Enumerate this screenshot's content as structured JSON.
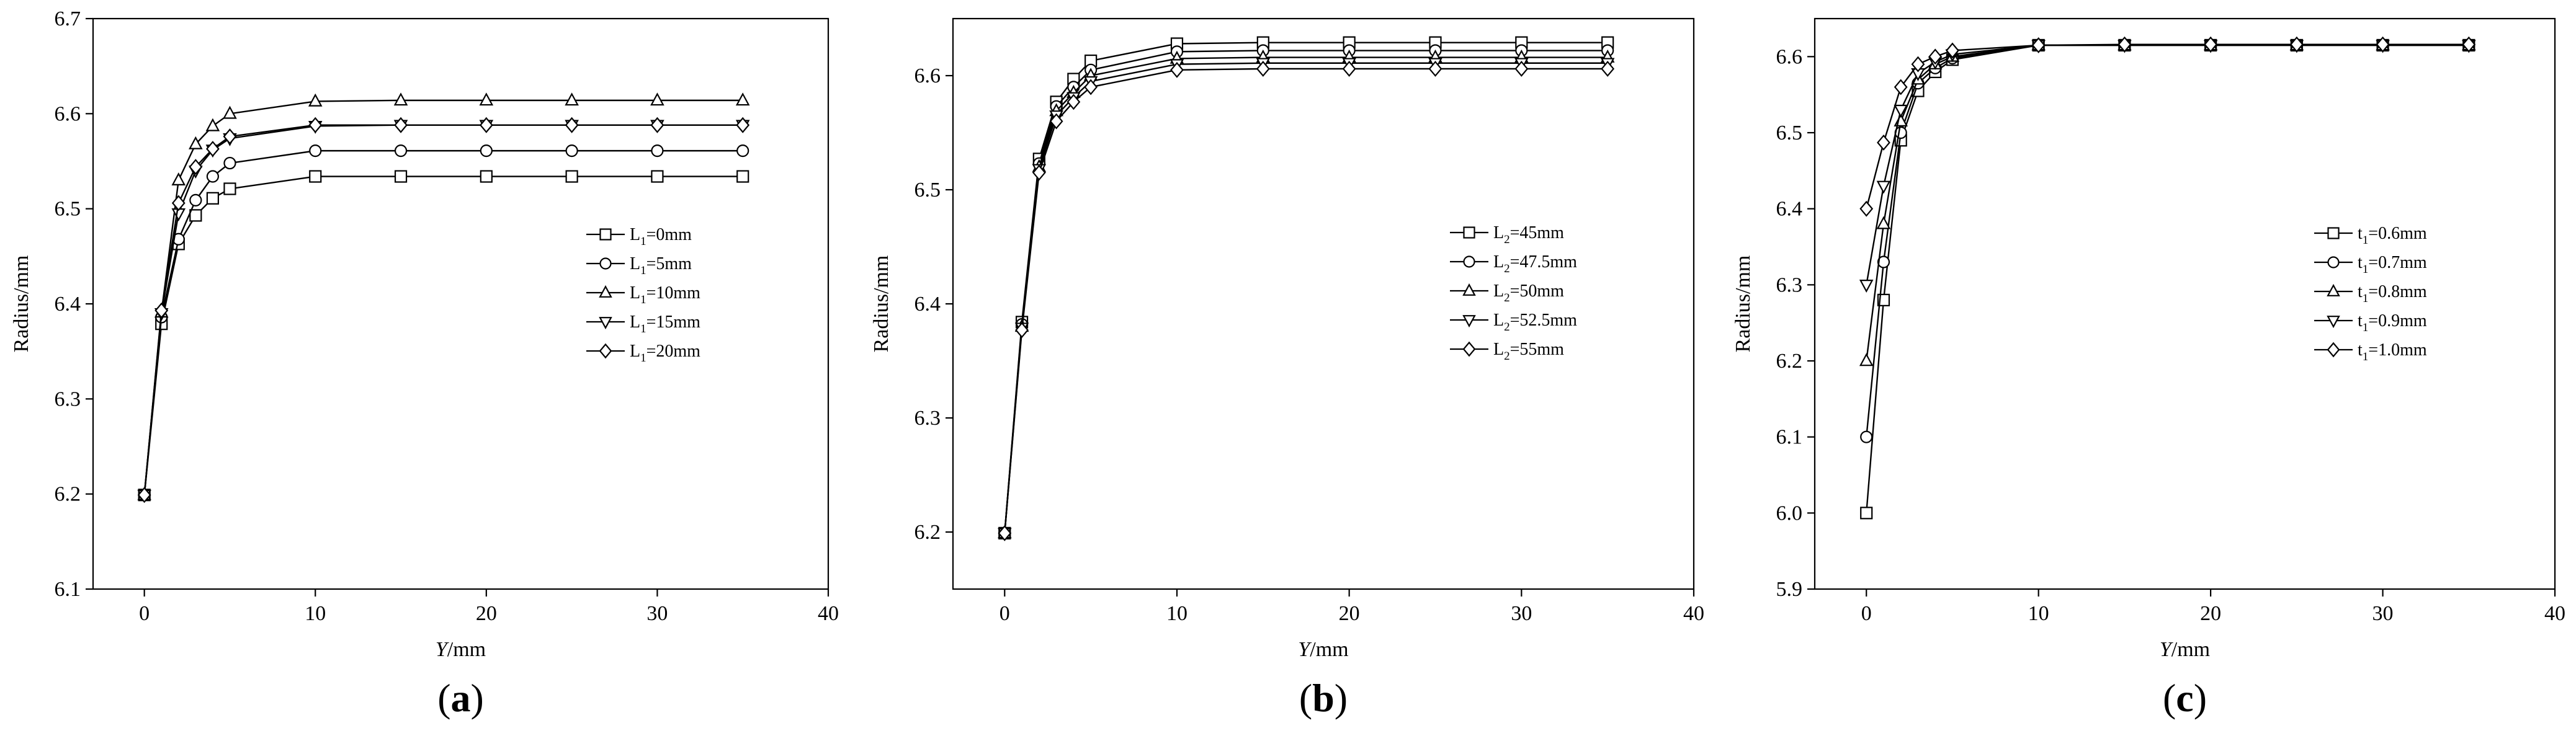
{
  "figure": {
    "panels": [
      {
        "label_open": "(",
        "label_letter": "a",
        "label_close": ")"
      },
      {
        "label_open": "(",
        "label_letter": "b",
        "label_close": ")"
      },
      {
        "label_open": "(",
        "label_letter": "c",
        "label_close": ")"
      }
    ]
  },
  "chart_data": [
    {
      "type": "line",
      "title": "",
      "xlabel_italic": "Y",
      "xlabel_rest": "/mm",
      "ylabel": "Radius/mm",
      "xlim": [
        -3,
        40
      ],
      "ylim": [
        6.1,
        6.7
      ],
      "xticks": [
        0,
        10,
        20,
        30,
        40
      ],
      "yticks": [
        6.1,
        6.2,
        6.3,
        6.4,
        6.5,
        6.6,
        6.7
      ],
      "tick_decimals": 1,
      "grid": false,
      "legend_position": "right-middle",
      "x": [
        0,
        1,
        2,
        3,
        4,
        5,
        10,
        15,
        20,
        25,
        30,
        35
      ],
      "series": [
        {
          "name_pre": "L",
          "name_sub": "1",
          "name_post": "=0mm",
          "marker": "square",
          "values": [
            6.199,
            6.379,
            6.463,
            6.493,
            6.511,
            6.521,
            6.534,
            6.534,
            6.534,
            6.534,
            6.534,
            6.534
          ]
        },
        {
          "name_pre": "L",
          "name_sub": "1",
          "name_post": "=5mm",
          "marker": "circle",
          "values": [
            6.199,
            6.386,
            6.468,
            6.509,
            6.534,
            6.548,
            6.561,
            6.561,
            6.561,
            6.561,
            6.561,
            6.561
          ]
        },
        {
          "name_pre": "L",
          "name_sub": "1",
          "name_post": "=10mm",
          "marker": "triangle-up",
          "values": [
            6.199,
            6.391,
            6.53,
            6.568,
            6.587,
            6.6,
            6.613,
            6.614,
            6.614,
            6.614,
            6.614,
            6.614
          ]
        },
        {
          "name_pre": "L",
          "name_sub": "1",
          "name_post": "=15mm",
          "marker": "triangle-down",
          "values": [
            6.199,
            6.39,
            6.495,
            6.54,
            6.562,
            6.574,
            6.587,
            6.588,
            6.588,
            6.588,
            6.588,
            6.588
          ]
        },
        {
          "name_pre": "L",
          "name_sub": "1",
          "name_post": "=20mm",
          "marker": "diamond",
          "values": [
            6.199,
            6.393,
            6.506,
            6.544,
            6.563,
            6.576,
            6.588,
            6.588,
            6.588,
            6.588,
            6.588,
            6.588
          ]
        }
      ]
    },
    {
      "type": "line",
      "title": "",
      "xlabel_italic": "Y",
      "xlabel_rest": "/mm",
      "ylabel": "Radius/mm",
      "xlim": [
        -3,
        40
      ],
      "ylim": [
        6.15,
        6.65
      ],
      "xticks": [
        0,
        10,
        20,
        30,
        40
      ],
      "yticks": [
        6.2,
        6.3,
        6.4,
        6.5,
        6.6
      ],
      "tick_decimals": 1,
      "grid": false,
      "legend_position": "right-middle",
      "x": [
        0,
        1,
        2,
        3,
        4,
        5,
        10,
        15,
        20,
        25,
        30,
        35
      ],
      "series": [
        {
          "name_pre": "L",
          "name_sub": "2",
          "name_post": "=45mm",
          "marker": "square",
          "values": [
            6.199,
            6.384,
            6.527,
            6.577,
            6.597,
            6.613,
            6.628,
            6.629,
            6.629,
            6.629,
            6.629,
            6.629
          ]
        },
        {
          "name_pre": "L",
          "name_sub": "2",
          "name_post": "=47.5mm",
          "marker": "circle",
          "values": [
            6.199,
            6.382,
            6.523,
            6.573,
            6.59,
            6.605,
            6.621,
            6.622,
            6.622,
            6.622,
            6.622,
            6.622
          ]
        },
        {
          "name_pre": "L",
          "name_sub": "2",
          "name_post": "=50mm",
          "marker": "triangle-up",
          "values": [
            6.199,
            6.38,
            6.52,
            6.569,
            6.585,
            6.6,
            6.615,
            6.616,
            6.616,
            6.616,
            6.616,
            6.616
          ]
        },
        {
          "name_pre": "L",
          "name_sub": "2",
          "name_post": "=52.5mm",
          "marker": "triangle-down",
          "values": [
            6.199,
            6.379,
            6.518,
            6.565,
            6.581,
            6.595,
            6.61,
            6.611,
            6.611,
            6.611,
            6.611,
            6.611
          ]
        },
        {
          "name_pre": "L",
          "name_sub": "2",
          "name_post": "=55mm",
          "marker": "diamond",
          "values": [
            6.199,
            6.377,
            6.515,
            6.56,
            6.577,
            6.59,
            6.605,
            6.606,
            6.606,
            6.606,
            6.606,
            6.606
          ]
        }
      ]
    },
    {
      "type": "line",
      "title": "",
      "xlabel_italic": "Y",
      "xlabel_rest": "/mm",
      "ylabel": "Radius/mm",
      "xlim": [
        -3,
        40
      ],
      "ylim": [
        5.9,
        6.65
      ],
      "xticks": [
        0,
        10,
        20,
        30,
        40
      ],
      "yticks": [
        5.9,
        6.0,
        6.1,
        6.2,
        6.3,
        6.4,
        6.5,
        6.6
      ],
      "tick_decimals": 1,
      "grid": false,
      "legend_position": "right-middle",
      "x": [
        0,
        1,
        2,
        3,
        4,
        5,
        10,
        15,
        20,
        25,
        30,
        35
      ],
      "series": [
        {
          "name_pre": "t",
          "name_sub": "1",
          "name_post": "=0.6mm",
          "marker": "square",
          "values": [
            6.0,
            6.28,
            6.49,
            6.555,
            6.58,
            6.596,
            6.615,
            6.615,
            6.615,
            6.615,
            6.615,
            6.615
          ]
        },
        {
          "name_pre": "t",
          "name_sub": "1",
          "name_post": "=0.7mm",
          "marker": "circle",
          "values": [
            6.1,
            6.33,
            6.5,
            6.565,
            6.585,
            6.598,
            6.615,
            6.615,
            6.615,
            6.615,
            6.615,
            6.615
          ]
        },
        {
          "name_pre": "t",
          "name_sub": "1",
          "name_post": "=0.8mm",
          "marker": "triangle-up",
          "values": [
            6.2,
            6.38,
            6.515,
            6.57,
            6.59,
            6.6,
            6.615,
            6.615,
            6.615,
            6.615,
            6.615,
            6.615
          ]
        },
        {
          "name_pre": "t",
          "name_sub": "1",
          "name_post": "=0.9mm",
          "marker": "triangle-down",
          "values": [
            6.3,
            6.43,
            6.53,
            6.578,
            6.593,
            6.603,
            6.615,
            6.615,
            6.615,
            6.615,
            6.615,
            6.615
          ]
        },
        {
          "name_pre": "t",
          "name_sub": "1",
          "name_post": "=1.0mm",
          "marker": "diamond",
          "values": [
            6.4,
            6.487,
            6.56,
            6.59,
            6.6,
            6.608,
            6.615,
            6.616,
            6.616,
            6.616,
            6.616,
            6.616
          ]
        }
      ]
    }
  ]
}
